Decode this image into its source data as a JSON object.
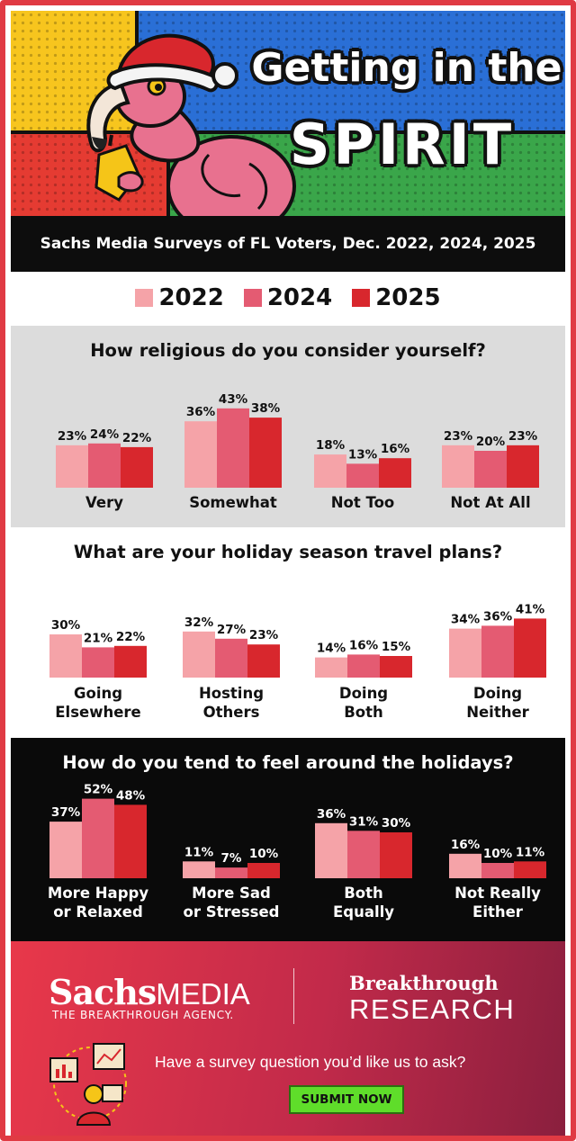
{
  "hero": {
    "title_line1": "Getting in the",
    "title_line2": "SPIRIT"
  },
  "subtitle": "Sachs Media Surveys of FL Voters, Dec. 2022, 2024, 2025",
  "colors": {
    "y2022": "#f5a3a8",
    "y2024": "#e45b72",
    "y2025": "#d8272d"
  },
  "legend": [
    {
      "label": "2022",
      "color": "#f5a3a8"
    },
    {
      "label": "2024",
      "color": "#e45b72"
    },
    {
      "label": "2025",
      "color": "#d8272d"
    }
  ],
  "chart_data": [
    {
      "type": "bar",
      "title": "How religious do you consider yourself?",
      "categories": [
        [
          "Very"
        ],
        [
          "Somewhat"
        ],
        [
          "Not Too"
        ],
        [
          "Not At All"
        ]
      ],
      "series": [
        {
          "name": "2022",
          "values": [
            23,
            36,
            18,
            23
          ]
        },
        {
          "name": "2024",
          "values": [
            24,
            43,
            13,
            20
          ]
        },
        {
          "name": "2025",
          "values": [
            22,
            38,
            16,
            23
          ]
        }
      ],
      "unit": "%"
    },
    {
      "type": "bar",
      "title": "What are your holiday season travel plans?",
      "categories": [
        [
          "Going",
          "Elsewhere"
        ],
        [
          "Hosting",
          "Others"
        ],
        [
          "Doing",
          "Both"
        ],
        [
          "Doing",
          "Neither"
        ]
      ],
      "series": [
        {
          "name": "2022",
          "values": [
            30,
            32,
            14,
            34
          ]
        },
        {
          "name": "2024",
          "values": [
            21,
            27,
            16,
            36
          ]
        },
        {
          "name": "2025",
          "values": [
            22,
            23,
            15,
            41
          ]
        }
      ],
      "unit": "%"
    },
    {
      "type": "bar",
      "title": "How do you tend to feel around the holidays?",
      "categories": [
        [
          "More Happy",
          "or Relaxed"
        ],
        [
          "More Sad",
          "or Stressed"
        ],
        [
          "Both",
          "Equally"
        ],
        [
          "Not Really",
          "Either"
        ]
      ],
      "series": [
        {
          "name": "2022",
          "values": [
            37,
            11,
            36,
            16
          ]
        },
        {
          "name": "2024",
          "values": [
            52,
            7,
            31,
            10
          ]
        },
        {
          "name": "2025",
          "values": [
            48,
            10,
            30,
            11
          ]
        }
      ],
      "unit": "%"
    }
  ],
  "footer": {
    "brand_sachs": "Sachs",
    "brand_media": "MEDIA",
    "tagline": "THE BREAKTHROUGH AGENCY.",
    "brand_breakthrough": "Breakthrough",
    "brand_research": "RESEARCH",
    "cta": "Have a survey question you’d like us to ask?",
    "submit_label": "SUBMIT NOW"
  }
}
